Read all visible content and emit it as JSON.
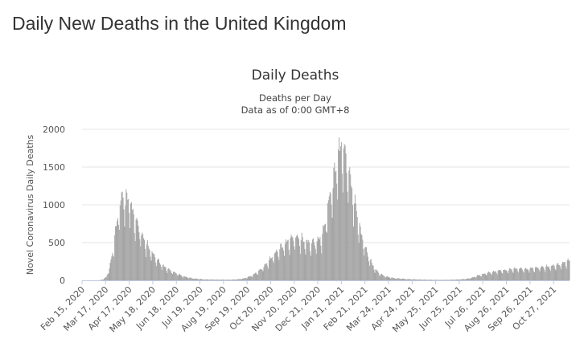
{
  "page": {
    "heading": "Daily New Deaths in the United Kingdom"
  },
  "colors": {
    "bar": "#a3a3a3",
    "grid": "#e6e6e6",
    "axis": "#c0cbe0"
  },
  "chart_data": {
    "type": "bar",
    "title": "Daily Deaths",
    "subtitle": [
      "Deaths per Day",
      "Data as of 0:00 GMT+8"
    ],
    "xlabel": "",
    "ylabel": "Novel Coronavirus Daily Deaths",
    "ylim": [
      0,
      2000
    ],
    "yticks": [
      0,
      500,
      1000,
      1500,
      2000
    ],
    "xlim": [
      "2020-02-15",
      "2021-11-17"
    ],
    "xticks": [
      "Feb 15, 2020",
      "Mar 17, 2020",
      "Apr 17, 2020",
      "May 18, 2020",
      "Jun 18, 2020",
      "Jul 19, 2020",
      "Aug 19, 2020",
      "Sep 19, 2020",
      "Oct 20, 2020",
      "Nov 20, 2020",
      "Dec 21, 2020",
      "Jan 21, 2021",
      "Feb 21, 2021",
      "Mar 24, 2021",
      "Apr 24, 2021",
      "May 25, 2021",
      "Jun 25, 2021",
      "Jul 26, 2021",
      "Aug 26, 2021",
      "Sep 26, 2021",
      "Oct 27, 2021"
    ],
    "grid": true,
    "legend": "none",
    "series": [
      {
        "x": [
          "2020-02-15",
          "2020-03-01",
          "2020-03-10",
          "2020-03-14",
          "2020-03-18",
          "2020-03-22",
          "2020-03-26",
          "2020-03-30",
          "2020-04-03",
          "2020-04-07",
          "2020-04-10",
          "2020-04-12",
          "2020-04-15",
          "2020-04-18",
          "2020-04-21",
          "2020-04-25",
          "2020-04-29",
          "2020-05-03",
          "2020-05-07",
          "2020-05-12",
          "2020-05-17",
          "2020-05-22",
          "2020-05-28",
          "2020-06-03",
          "2020-06-10",
          "2020-06-18",
          "2020-06-28",
          "2020-07-10",
          "2020-07-25",
          "2020-08-10",
          "2020-08-25",
          "2020-09-05",
          "2020-09-15",
          "2020-09-25",
          "2020-10-03",
          "2020-10-10",
          "2020-10-17",
          "2020-10-24",
          "2020-10-31",
          "2020-11-07",
          "2020-11-14",
          "2020-11-21",
          "2020-11-28",
          "2020-12-05",
          "2020-12-12",
          "2020-12-19",
          "2020-12-26",
          "2020-12-30",
          "2021-01-03",
          "2021-01-07",
          "2021-01-11",
          "2021-01-15",
          "2021-01-19",
          "2021-01-23",
          "2021-01-27",
          "2021-01-31",
          "2021-02-04",
          "2021-02-08",
          "2021-02-12",
          "2021-02-16",
          "2021-02-20",
          "2021-02-24",
          "2021-03-01",
          "2021-03-06",
          "2021-03-12",
          "2021-03-18",
          "2021-03-25",
          "2021-04-01",
          "2021-04-10",
          "2021-04-20",
          "2021-05-01",
          "2021-05-15",
          "2021-06-01",
          "2021-06-15",
          "2021-06-25",
          "2021-07-05",
          "2021-07-12",
          "2021-07-19",
          "2021-07-26",
          "2021-08-02",
          "2021-08-09",
          "2021-08-16",
          "2021-08-23",
          "2021-08-30",
          "2021-09-06",
          "2021-09-13",
          "2021-09-20",
          "2021-09-27",
          "2021-10-04",
          "2021-10-11",
          "2021-10-18",
          "2021-10-25",
          "2021-11-01",
          "2021-11-08",
          "2021-11-15"
        ],
        "values": [
          0,
          0,
          2,
          15,
          45,
          160,
          350,
          620,
          900,
          1050,
          1150,
          980,
          1100,
          1020,
          900,
          780,
          700,
          600,
          520,
          430,
          360,
          290,
          220,
          170,
          130,
          90,
          50,
          25,
          12,
          10,
          8,
          12,
          25,
          60,
          110,
          170,
          240,
          330,
          400,
          470,
          520,
          560,
          540,
          500,
          480,
          500,
          560,
          700,
          950,
          1150,
          1300,
          1550,
          1700,
          1750,
          1550,
          1400,
          1200,
          980,
          780,
          600,
          470,
          350,
          240,
          150,
          90,
          60,
          40,
          28,
          22,
          15,
          12,
          8,
          6,
          8,
          12,
          20,
          35,
          60,
          80,
          100,
          110,
          125,
          130,
          140,
          150,
          150,
          145,
          155,
          160,
          170,
          175,
          185,
          200,
          220,
          250
        ]
      }
    ]
  }
}
